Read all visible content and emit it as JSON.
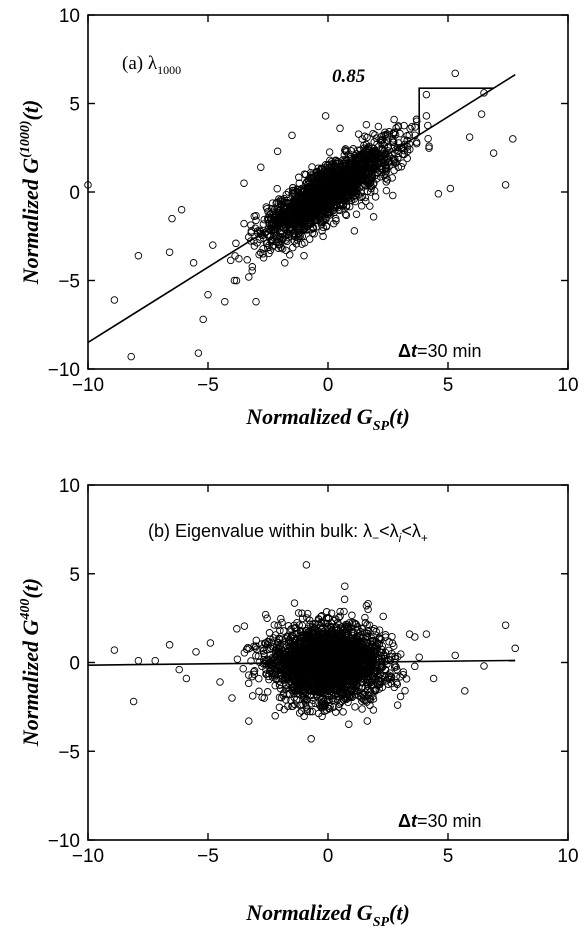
{
  "chart_data": [
    {
      "type": "scatter",
      "panel_label": "(a) λ",
      "panel_label_sub": "1000",
      "slope_label": "0.85",
      "annotation_prefix": "Δ",
      "annotation_rest": "t=30 min",
      "xlabel_main": "Normalized G",
      "xlabel_sub": "SP",
      "xlabel_end": "(t)",
      "ylabel_main": "Normalized G",
      "ylabel_sup": "(1000)",
      "ylabel_end": "(t)",
      "xlim": [
        -10,
        10
      ],
      "ylim": [
        -10,
        10
      ],
      "xticks": [
        -10,
        -5,
        0,
        5,
        10
      ],
      "yticks": [
        -10,
        -5,
        0,
        5,
        10
      ],
      "xtick_labels": [
        "−10",
        "−5",
        "0",
        "5",
        "10"
      ],
      "ytick_labels": [
        "−10",
        "−5",
        "0",
        "5",
        "10"
      ],
      "fit_line": {
        "slope": 0.85,
        "intercept": 0.0,
        "x_range": [
          -10,
          7.8
        ]
      },
      "outliers": [
        [
          -10.0,
          0.4
        ],
        [
          -8.9,
          -6.1
        ],
        [
          -8.2,
          -9.3
        ],
        [
          -7.9,
          -3.6
        ],
        [
          -6.6,
          -3.4
        ],
        [
          -5.4,
          -9.1
        ],
        [
          -5.2,
          -7.2
        ],
        [
          -4.3,
          -6.2
        ],
        [
          -5.0,
          -5.8
        ],
        [
          -3.9,
          -5.0
        ],
        [
          -3.0,
          -6.2
        ],
        [
          -2.8,
          1.4
        ],
        [
          -3.5,
          0.5
        ],
        [
          -2.1,
          2.3
        ],
        [
          -1.5,
          3.2
        ],
        [
          -4.8,
          -3.0
        ],
        [
          -6.5,
          -1.5
        ],
        [
          -3.0,
          -1.6
        ],
        [
          -1.0,
          -3.6
        ],
        [
          0.5,
          3.6
        ],
        [
          1.1,
          -2.2
        ],
        [
          1.9,
          -1.4
        ],
        [
          2.7,
          -0.2
        ],
        [
          3.3,
          1.9
        ],
        [
          3.0,
          3.3
        ],
        [
          3.7,
          4.0
        ],
        [
          4.1,
          4.3
        ],
        [
          4.1,
          5.5
        ],
        [
          4.6,
          -0.1
        ],
        [
          5.1,
          0.2
        ],
        [
          5.3,
          6.7
        ],
        [
          5.9,
          3.1
        ],
        [
          6.5,
          5.6
        ],
        [
          6.4,
          4.4
        ],
        [
          6.9,
          2.2
        ],
        [
          7.4,
          0.4
        ],
        [
          7.7,
          3.0
        ],
        [
          -0.1,
          4.3
        ],
        [
          2.1,
          3.7
        ],
        [
          1.6,
          3.8
        ],
        [
          -1.8,
          -4.0
        ],
        [
          -5.6,
          -4.0
        ],
        [
          -3.3,
          -4.8
        ],
        [
          -6.1,
          -1.0
        ]
      ],
      "core": {
        "n": 2000,
        "sx": 1.35,
        "slope": 0.85,
        "noise": 0.72
      }
    },
    {
      "type": "scatter",
      "panel_label": "(b) Eigenvalue within bulk: λ",
      "panel_label_parts": [
        "−",
        "<λ",
        "i",
        "<λ",
        "+"
      ],
      "annotation_prefix": "Δ",
      "annotation_rest": "t=30 min",
      "xlabel_main": "Normalized G",
      "xlabel_sub": "SP",
      "xlabel_end": "(t)",
      "ylabel_main": "Normalized G",
      "ylabel_sup": "400",
      "ylabel_end": "(t)",
      "xlim": [
        -10,
        10
      ],
      "ylim": [
        -10,
        10
      ],
      "xticks": [
        -10,
        -5,
        0,
        5,
        10
      ],
      "yticks": [
        -10,
        -5,
        0,
        5,
        10
      ],
      "xtick_labels": [
        "−10",
        "−5",
        "0",
        "5",
        "10"
      ],
      "ytick_labels": [
        "−10",
        "−5",
        "0",
        "5",
        "10"
      ],
      "fit_line": {
        "slope": 0.015,
        "intercept": 0.0,
        "x_range": [
          -10,
          7.8
        ]
      },
      "outliers": [
        [
          -8.9,
          0.7
        ],
        [
          -8.1,
          -2.2
        ],
        [
          -7.9,
          0.1
        ],
        [
          -7.2,
          0.1
        ],
        [
          -6.6,
          1.0
        ],
        [
          -5.5,
          0.6
        ],
        [
          -4.9,
          1.1
        ],
        [
          -4.5,
          -1.1
        ],
        [
          -5.9,
          -0.9
        ],
        [
          -3.8,
          1.9
        ],
        [
          -3.3,
          -3.3
        ],
        [
          -2.6,
          2.7
        ],
        [
          -2.2,
          -3.0
        ],
        [
          -0.9,
          5.5
        ],
        [
          -0.7,
          -4.3
        ],
        [
          0.7,
          4.3
        ],
        [
          1.6,
          3.2
        ],
        [
          2.3,
          2.6
        ],
        [
          2.9,
          -2.4
        ],
        [
          3.8,
          0.3
        ],
        [
          4.4,
          -0.9
        ],
        [
          5.3,
          0.4
        ],
        [
          5.7,
          -1.6
        ],
        [
          7.4,
          2.1
        ],
        [
          7.8,
          0.8
        ],
        [
          6.5,
          -0.2
        ],
        [
          4.1,
          1.6
        ],
        [
          -6.2,
          -0.4
        ],
        [
          -4.0,
          -2.0
        ],
        [
          3.4,
          1.6
        ]
      ],
      "core": {
        "n": 2500,
        "sx": 1.15,
        "slope": 0.0,
        "noise": 1.05
      }
    }
  ]
}
